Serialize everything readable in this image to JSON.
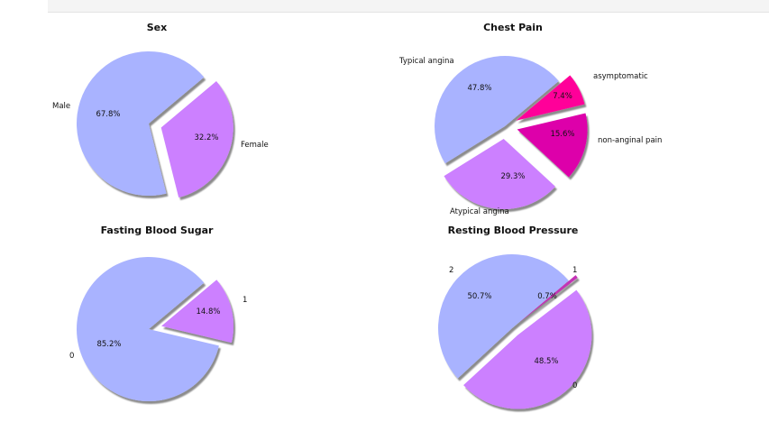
{
  "chart_data": [
    {
      "type": "pie",
      "title": "Sex",
      "slices": [
        {
          "label": "Male",
          "value": 67.8,
          "pct_label": "67.8%",
          "color": "#a9b3ff",
          "explode": false
        },
        {
          "label": "Female",
          "value": 32.2,
          "pct_label": "32.2%",
          "color": "#cc80ff",
          "explode": true
        }
      ]
    },
    {
      "type": "pie",
      "title": "Chest Pain",
      "slices": [
        {
          "label": "Typical angina",
          "value": 47.8,
          "pct_label": "47.8%",
          "color": "#a9b3ff",
          "explode": false
        },
        {
          "label": "Atypical angina",
          "value": 29.3,
          "pct_label": "29.3%",
          "color": "#cc80ff",
          "explode": true
        },
        {
          "label": "non-anginal pain",
          "value": 15.6,
          "pct_label": "15.6%",
          "color": "#dd00aa",
          "explode": true
        },
        {
          "label": "asymptomatic",
          "value": 7.4,
          "pct_label": "7.4%",
          "color": "#ff0099",
          "explode": true
        }
      ]
    },
    {
      "type": "pie",
      "title": "Fasting Blood Sugar",
      "slices": [
        {
          "label": "0",
          "value": 85.2,
          "pct_label": "85.2%",
          "color": "#a9b3ff",
          "explode": false
        },
        {
          "label": "1",
          "value": 14.8,
          "pct_label": "14.8%",
          "color": "#cc80ff",
          "explode": true
        }
      ]
    },
    {
      "type": "pie",
      "title": "Resting Blood Pressure",
      "slices": [
        {
          "label": "2",
          "value": 50.7,
          "pct_label": "50.7%",
          "color": "#a9b3ff",
          "explode": false
        },
        {
          "label": "0",
          "value": 48.5,
          "pct_label": "48.5%",
          "color": "#cc80ff",
          "explode": true
        },
        {
          "label": "1",
          "value": 0.7,
          "pct_label": "0.7%",
          "color": "#c433b6",
          "explode": true
        }
      ]
    }
  ]
}
